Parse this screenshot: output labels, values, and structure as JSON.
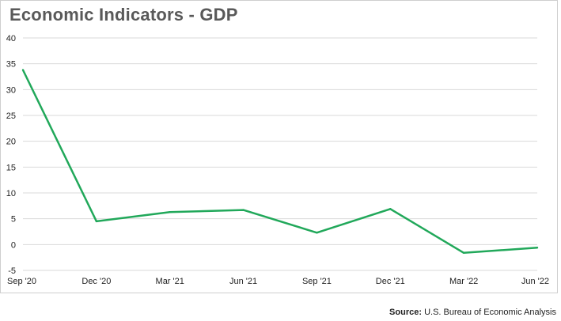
{
  "colors": {
    "line": "#21a85a",
    "grid": "#d9d9d9",
    "title": "#595959",
    "text": "#222222"
  },
  "chart_data": {
    "type": "line",
    "title": "Economic Indicators - GDP",
    "xlabel": "",
    "ylabel": "",
    "categories": [
      "Sep '20",
      "Dec '20",
      "Mar '21",
      "Jun '21",
      "Sep '21",
      "Dec '21",
      "Mar '22",
      "Jun '22"
    ],
    "series": [
      {
        "values": [
          33.8,
          4.5,
          6.3,
          6.7,
          2.3,
          6.9,
          -1.6,
          -0.6
        ]
      }
    ],
    "ylim": [
      -5,
      40
    ],
    "yticks": [
      40,
      35,
      30,
      25,
      20,
      15,
      10,
      5,
      0,
      -5
    ],
    "grid": true,
    "legend": "none"
  },
  "source": {
    "label": "Source:",
    "text": "U.S. Bureau of Economic Analysis"
  }
}
